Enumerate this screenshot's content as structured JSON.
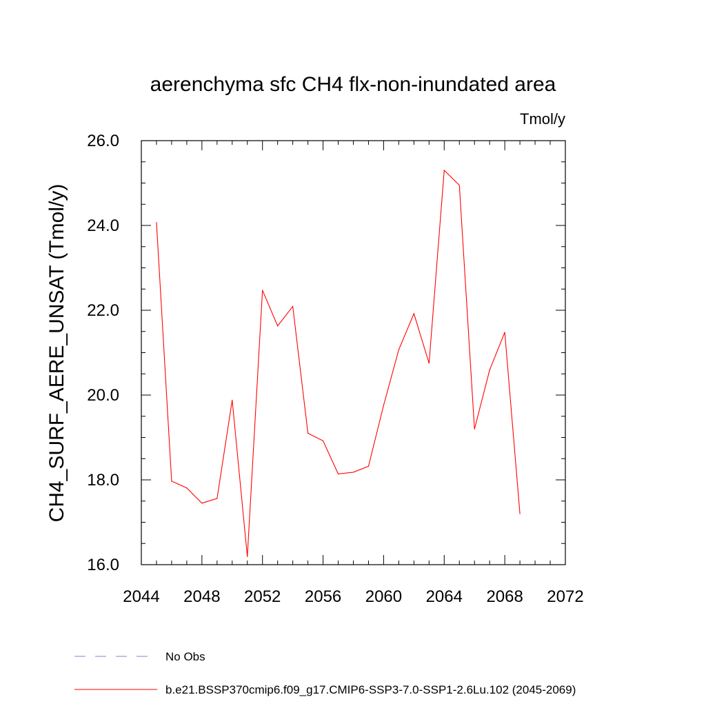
{
  "chart_data": {
    "type": "line",
    "title": "aerenchyma sfc CH4 flx-non-inundated area",
    "units_label": "Tmol/y",
    "ylabel": "CH4_SURF_AERE_UNSAT  (Tmol/y)",
    "xlabel": "",
    "xlim": [
      2044,
      2072
    ],
    "ylim": [
      16.0,
      26.0
    ],
    "x_ticks": [
      2044,
      2048,
      2052,
      2056,
      2060,
      2064,
      2068,
      2072
    ],
    "x_tick_labels": [
      "2044",
      "2048",
      "2052",
      "2056",
      "2060",
      "2064",
      "2068",
      "2072"
    ],
    "y_ticks": [
      16.0,
      18.0,
      20.0,
      22.0,
      24.0,
      26.0
    ],
    "y_tick_labels": [
      "16.0",
      "18.0",
      "20.0",
      "22.0",
      "24.0",
      "26.0"
    ],
    "x_minor_step": 1,
    "y_minor_step": 0.5,
    "grid": false,
    "series": [
      {
        "name": "b.e21.BSSP370cmip6.f09_g17.CMIP6-SSP3-7.0-SSP1-2.6Lu.102 (2045-2069)",
        "color": "#ff0000",
        "style": "solid",
        "x": [
          2045,
          2046,
          2047,
          2048,
          2049,
          2050,
          2051,
          2052,
          2053,
          2054,
          2055,
          2056,
          2057,
          2058,
          2059,
          2060,
          2061,
          2062,
          2063,
          2064,
          2065,
          2066,
          2067,
          2068,
          2069
        ],
        "values": [
          24.07,
          17.97,
          17.81,
          17.45,
          17.56,
          19.88,
          16.19,
          22.47,
          21.63,
          22.09,
          19.1,
          18.92,
          18.14,
          18.18,
          18.32,
          19.76,
          21.07,
          21.92,
          20.75,
          25.3,
          24.95,
          19.2,
          20.59,
          21.48,
          17.2
        ]
      }
    ],
    "legend": {
      "placement": "bottom-left",
      "entries": [
        {
          "label": "No Obs",
          "color": "#8a7fd0",
          "style": "dashed"
        },
        {
          "label": "b.e21.BSSP370cmip6.f09_g17.CMIP6-SSP3-7.0-SSP1-2.6Lu.102 (2045-2069)",
          "color": "#ff0000",
          "style": "solid"
        }
      ]
    }
  }
}
